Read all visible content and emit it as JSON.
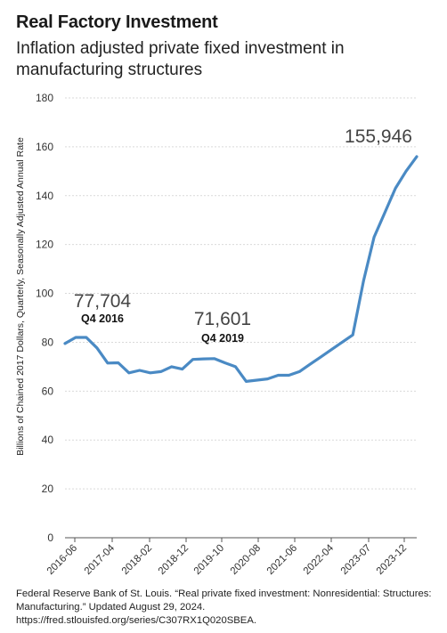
{
  "title": "Real Factory Investment",
  "subtitle": "Inflation adjusted private fixed investment in manufacturing structures",
  "source": "Federal Reserve Bank of St. Louis. “Real private fixed investment: Nonresidential: Structures: Manufacturing.” Updated August 29, 2024. https://fred.stlouisfed.org/series/C307RX1Q020SBEA.",
  "chart_data": {
    "type": "line",
    "ylabel": "Billions of Chained 2017 Dollars, Quarterly, Seasonally Adjusted Annual Rate",
    "ylim": [
      0,
      180
    ],
    "yticks": [
      0,
      20,
      40,
      60,
      80,
      100,
      120,
      140,
      160,
      180
    ],
    "xlim": [
      "2016-01",
      "2024-04"
    ],
    "xticks": [
      "2016-06",
      "2017-04",
      "2018-02",
      "2018-12",
      "2019-10",
      "2020-08",
      "2021-06",
      "2022-04",
      "2023-07",
      "2023-12"
    ],
    "line_color": "#4a8ac4",
    "series": [
      {
        "x": [
          "2016-01",
          "2016-04",
          "2016-07",
          "2016-10",
          "2017-01",
          "2017-04",
          "2017-07",
          "2017-10",
          "2018-01",
          "2018-04",
          "2018-07",
          "2018-10",
          "2019-01",
          "2019-04",
          "2019-07",
          "2019-10",
          "2020-01",
          "2020-04",
          "2020-07",
          "2020-10",
          "2021-01",
          "2021-04",
          "2021-07",
          "2021-10",
          "2022-01",
          "2022-04",
          "2022-07",
          "2022-10",
          "2023-01",
          "2023-04",
          "2023-07",
          "2023-10",
          "2024-01",
          "2024-04"
        ],
        "y": [
          79.5,
          82,
          82,
          77.7,
          71.5,
          71.6,
          67.5,
          68.5,
          67.5,
          68,
          70,
          69,
          73,
          73.2,
          73.3,
          71.6,
          70,
          64,
          64.5,
          65,
          66.5,
          66.5,
          68,
          71,
          74,
          77,
          80,
          83,
          105,
          123,
          133,
          143,
          150,
          156
        ]
      }
    ],
    "annotations": [
      {
        "value": "77,704",
        "label": "Q4 2016"
      },
      {
        "value": "71,601",
        "label": "Q4 2019"
      },
      {
        "value": "155,946",
        "label": ""
      }
    ]
  }
}
